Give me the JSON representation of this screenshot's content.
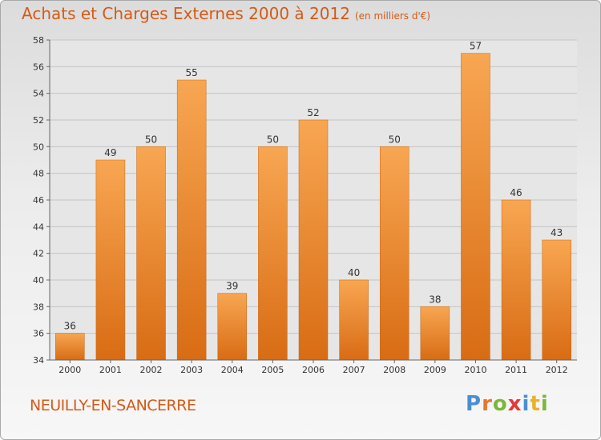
{
  "chart_data": {
    "type": "bar",
    "title": "Achats et Charges Externes 2000 à 2012",
    "subtitle": "(en milliers d'€)",
    "categories": [
      "2000",
      "2001",
      "2002",
      "2003",
      "2004",
      "2005",
      "2006",
      "2007",
      "2008",
      "2009",
      "2010",
      "2011",
      "2012"
    ],
    "values": [
      36,
      49,
      50,
      55,
      39,
      50,
      52,
      40,
      50,
      38,
      57,
      46,
      43
    ],
    "ylim": [
      34,
      58
    ],
    "yticks": [
      34,
      36,
      38,
      40,
      42,
      44,
      46,
      48,
      50,
      52,
      54,
      56,
      58
    ],
    "grid": true,
    "bar_color_top": "#f8a652",
    "bar_color_bottom": "#d86c14"
  },
  "footer": {
    "commune": "NEUILLY-EN-SANCERRE",
    "logo": "Proxiti",
    "logo_colors": [
      "#4a8fd1",
      "#e8762c",
      "#7bb73a",
      "#e23a3a",
      "#4a8fd1",
      "#e8b32c",
      "#7bb73a"
    ]
  }
}
